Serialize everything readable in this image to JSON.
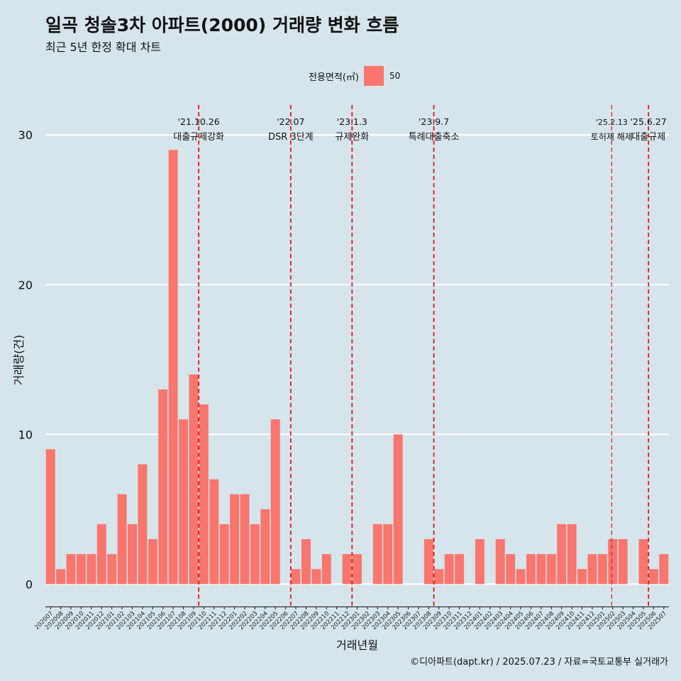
{
  "header": {
    "title": "일곡 청솔3차 아파트(2000) 거래량 변화 흐름",
    "subtitle": "최근 5년 한정 확대 차트"
  },
  "legend": {
    "title": "전용면적(㎡)",
    "label": "50",
    "color": "#f8766d"
  },
  "credit": "©디아파트(dapt.kr) / 2025.07.23 / 자료=국토교통부 실거래가",
  "colors": {
    "background": "#d6e4ec",
    "bar": "#f8766d",
    "grid": "#ffffff",
    "event_line": "#e41a1c"
  },
  "chart_data": {
    "type": "bar",
    "xlabel": "거래년월",
    "ylabel": "거래량(건)",
    "ylim": [
      -1.5,
      32
    ],
    "yticks": [
      0,
      10,
      20,
      30
    ],
    "grid": true,
    "legend_position": "top",
    "categories": [
      "202007",
      "202008",
      "202009",
      "202010",
      "202011",
      "202012",
      "202101",
      "202102",
      "202103",
      "202104",
      "202105",
      "202106",
      "202107",
      "202108",
      "202109",
      "202110",
      "202111",
      "202112",
      "202201",
      "202202",
      "202203",
      "202204",
      "202205",
      "202206",
      "202207",
      "202208",
      "202209",
      "202210",
      "202211",
      "202212",
      "202301",
      "202302",
      "202303",
      "202304",
      "202305",
      "202306",
      "202307",
      "202308",
      "202309",
      "202310",
      "202311",
      "202312",
      "202401",
      "202402",
      "202403",
      "202404",
      "202405",
      "202406",
      "202407",
      "202408",
      "202409",
      "202410",
      "202411",
      "202412",
      "202501",
      "202502",
      "202503",
      "202504",
      "202505",
      "202506",
      "202507"
    ],
    "series": [
      {
        "name": "50",
        "values": [
          9,
          1,
          2,
          2,
          2,
          4,
          2,
          6,
          4,
          8,
          3,
          13,
          29,
          11,
          14,
          12,
          7,
          4,
          6,
          6,
          4,
          5,
          11,
          0,
          1,
          3,
          1,
          2,
          0,
          2,
          2,
          0,
          4,
          4,
          10,
          0,
          0,
          3,
          1,
          2,
          2,
          0,
          3,
          0,
          3,
          2,
          1,
          2,
          2,
          2,
          4,
          4,
          1,
          2,
          2,
          3,
          3,
          0,
          3,
          1,
          2
        ]
      }
    ],
    "events": [
      {
        "date": "'21.10.26",
        "label": "대출규제강화",
        "at": 15.0
      },
      {
        "date": "'22.07",
        "label": "DSR 3단계",
        "at": 24.0
      },
      {
        "date": "'23.1.3",
        "label": "규제완화",
        "at": 30.0
      },
      {
        "date": "'23.9.7",
        "label": "특례대출축소",
        "at": 38.0
      },
      {
        "date": "'25.2.13",
        "label": "토허제 해제",
        "at": 55.4
      },
      {
        "date": "'25.6.27",
        "label": "대출규제",
        "at": 59.0
      }
    ]
  }
}
